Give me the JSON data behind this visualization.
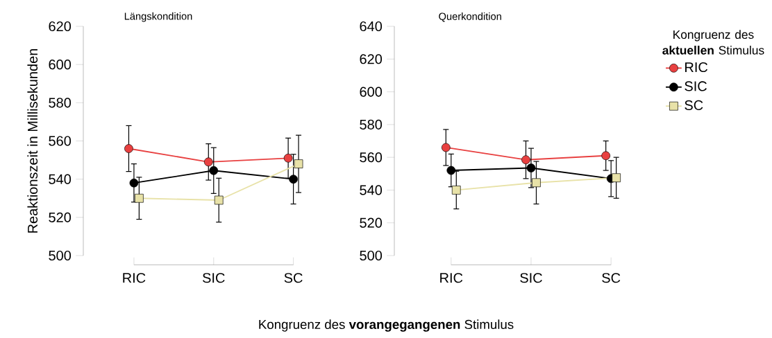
{
  "chart_data": [
    {
      "type": "line",
      "title": "Längskondition",
      "xlabel": "Kongruenz des **vorangegangenen** Stimulus",
      "ylabel": "Reaktionszeit in Millisekunden",
      "categories": [
        "RIC",
        "SIC",
        "SC"
      ],
      "ylim": [
        500,
        620
      ],
      "yticks": [
        500,
        520,
        540,
        560,
        580,
        600,
        620
      ],
      "series": [
        {
          "color": "#e84040",
          "marker": "circle",
          "values": [
            556,
            549,
            551
          ],
          "errors": [
            12,
            9.5,
            10.5
          ]
        },
        {
          "color": "#000000",
          "marker": "circle",
          "values": [
            538,
            544.5,
            540
          ],
          "errors": [
            10,
            12,
            13
          ]
        },
        {
          "color": "#e8e2a8",
          "marker": "square",
          "values": [
            530,
            529,
            548
          ],
          "errors": [
            11,
            11.5,
            15
          ]
        }
      ]
    },
    {
      "type": "line",
      "title": "Querkondition",
      "legend": "right",
      "legend_title": "Kongruenz des **aktuellen** Stimulus",
      "categories": [
        "RIC",
        "SIC",
        "SC"
      ],
      "ylim": [
        500,
        640
      ],
      "yticks": [
        500,
        520,
        540,
        560,
        580,
        600,
        620,
        640
      ],
      "series": [
        {
          "name": "RIC",
          "color": "#e84040",
          "marker": "circle",
          "values": [
            566,
            558.5,
            561
          ],
          "errors": [
            11,
            11.5,
            9
          ]
        },
        {
          "name": "SIC",
          "color": "#000000",
          "marker": "circle",
          "values": [
            552,
            553.5,
            547
          ],
          "errors": [
            10,
            12,
            11
          ]
        },
        {
          "name": "SC",
          "color": "#e8e2a8",
          "marker": "square",
          "values": [
            540,
            544.5,
            547.5
          ],
          "errors": [
            11.5,
            13,
            12.5
          ]
        }
      ]
    }
  ]
}
